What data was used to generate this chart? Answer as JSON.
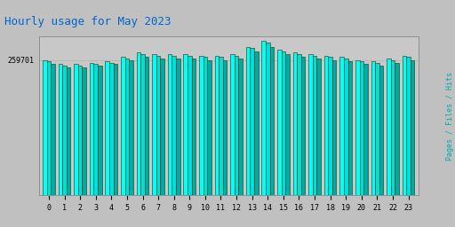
{
  "title": "Hourly usage for May 2023",
  "title_color": "#0066cc",
  "title_fontsize": 9,
  "ylabel_right": "Pages / Files / Hits",
  "ylabel_right_color": "#00aaaa",
  "background_color": "#c0c0c0",
  "plot_bg_color": "#c8c8c8",
  "hours": [
    0,
    1,
    2,
    3,
    4,
    5,
    6,
    7,
    8,
    9,
    10,
    11,
    12,
    13,
    14,
    15,
    16,
    17,
    18,
    19,
    20,
    21,
    22,
    23
  ],
  "hits": [
    9200,
    8900,
    8900,
    9000,
    9100,
    9400,
    9700,
    9600,
    9600,
    9600,
    9500,
    9500,
    9600,
    10100,
    10500,
    9900,
    9700,
    9600,
    9500,
    9400,
    9200,
    9100,
    9300,
    9500
  ],
  "files": [
    9100,
    8800,
    8800,
    8900,
    9000,
    9300,
    9600,
    9500,
    9500,
    9500,
    9400,
    9400,
    9500,
    10000,
    10400,
    9800,
    9600,
    9500,
    9400,
    9300,
    9100,
    9000,
    9200,
    9400
  ],
  "pages": [
    8900,
    8700,
    8700,
    8800,
    8900,
    9200,
    9400,
    9300,
    9300,
    9300,
    9200,
    9200,
    9300,
    9800,
    10100,
    9600,
    9400,
    9300,
    9200,
    9100,
    8900,
    8800,
    9000,
    9200
  ],
  "bar_color_hits": "#00ffff",
  "bar_color_files": "#00dddd",
  "bar_color_pages": "#00aaaa",
  "bar_edge_color": "#004400",
  "ylim_min": 0,
  "ylim_max": 10800,
  "ytick_value": 9200,
  "ytick_label": "259701",
  "font_family": "monospace",
  "font_size_ticks": 6,
  "font_size_title": 9,
  "font_size_ylabel": 6
}
